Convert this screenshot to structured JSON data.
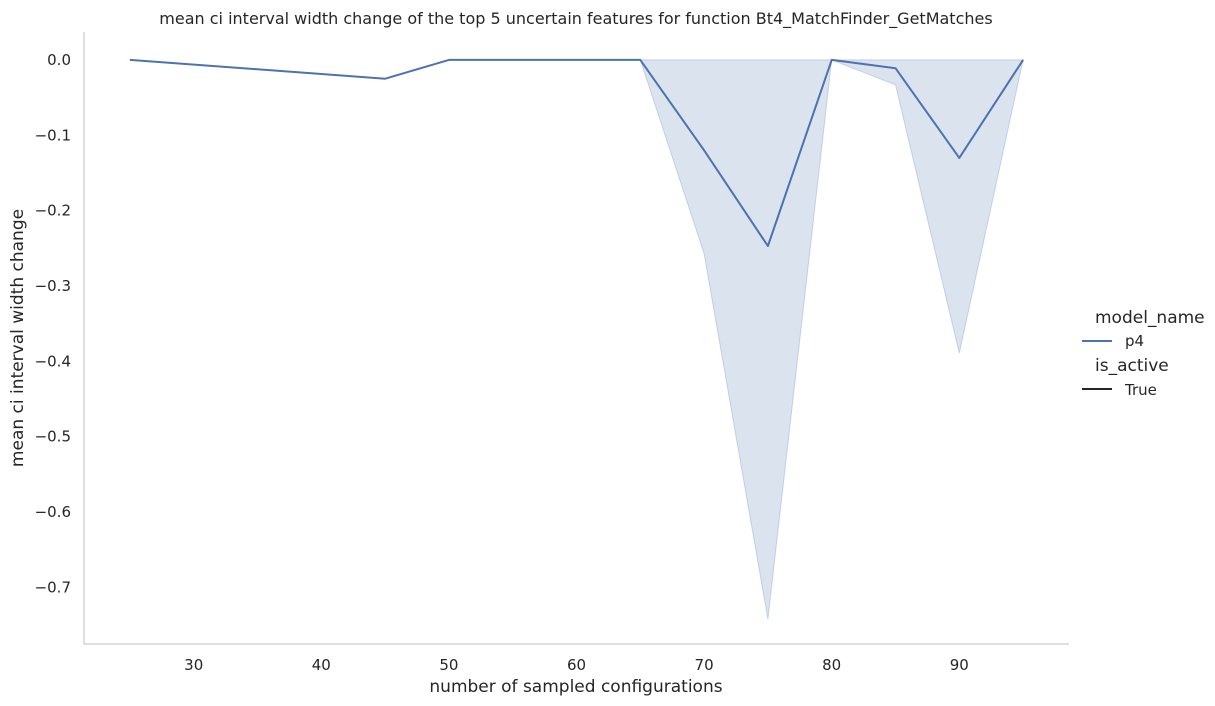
{
  "chart_data": {
    "type": "line",
    "title": "mean ci interval width change of the top 5 uncertain features for function Bt4_MatchFinder_GetMatches",
    "xlabel": "number of sampled configurations",
    "ylabel": "mean ci interval width change",
    "xlim": [
      21.4,
      98.6
    ],
    "ylim": [
      -0.775,
      0.037
    ],
    "xticks": [
      30,
      40,
      50,
      60,
      70,
      80,
      90
    ],
    "xtick_labels": [
      "30",
      "40",
      "50",
      "60",
      "70",
      "80",
      "90"
    ],
    "yticks": [
      0.0,
      -0.1,
      -0.2,
      -0.3,
      -0.4,
      -0.5,
      -0.6,
      -0.7
    ],
    "ytick_labels": [
      "0.0",
      "−0.1",
      "−0.2",
      "−0.3",
      "−0.4",
      "−0.5",
      "−0.6",
      "−0.7"
    ],
    "grid": false,
    "legend_placement": "right",
    "legend": {
      "hue_title": "model_name",
      "style_title": "is_active",
      "entries": [
        {
          "group": "hue",
          "label": "p4",
          "color": "#4c72b0"
        },
        {
          "group": "style",
          "label": "True",
          "color": "#262626"
        }
      ]
    },
    "series": [
      {
        "name": "p4",
        "color": "#4c72b0",
        "band_color": "#4c72b0",
        "x": [
          25,
          45,
          50,
          65,
          70,
          75,
          80,
          85,
          90,
          95
        ],
        "y": [
          0.0,
          -0.025,
          0.0,
          0.0,
          -0.12,
          -0.247,
          0.0,
          -0.011,
          -0.13,
          0.0
        ],
        "lower": [
          0.0,
          -0.025,
          0.0,
          0.0,
          -0.257,
          -0.742,
          0.0,
          -0.033,
          -0.389,
          0.0
        ],
        "upper": [
          0.0,
          -0.025,
          0.0,
          0.0,
          0.0,
          0.0,
          0.0,
          0.0,
          0.0,
          0.0
        ]
      }
    ]
  }
}
